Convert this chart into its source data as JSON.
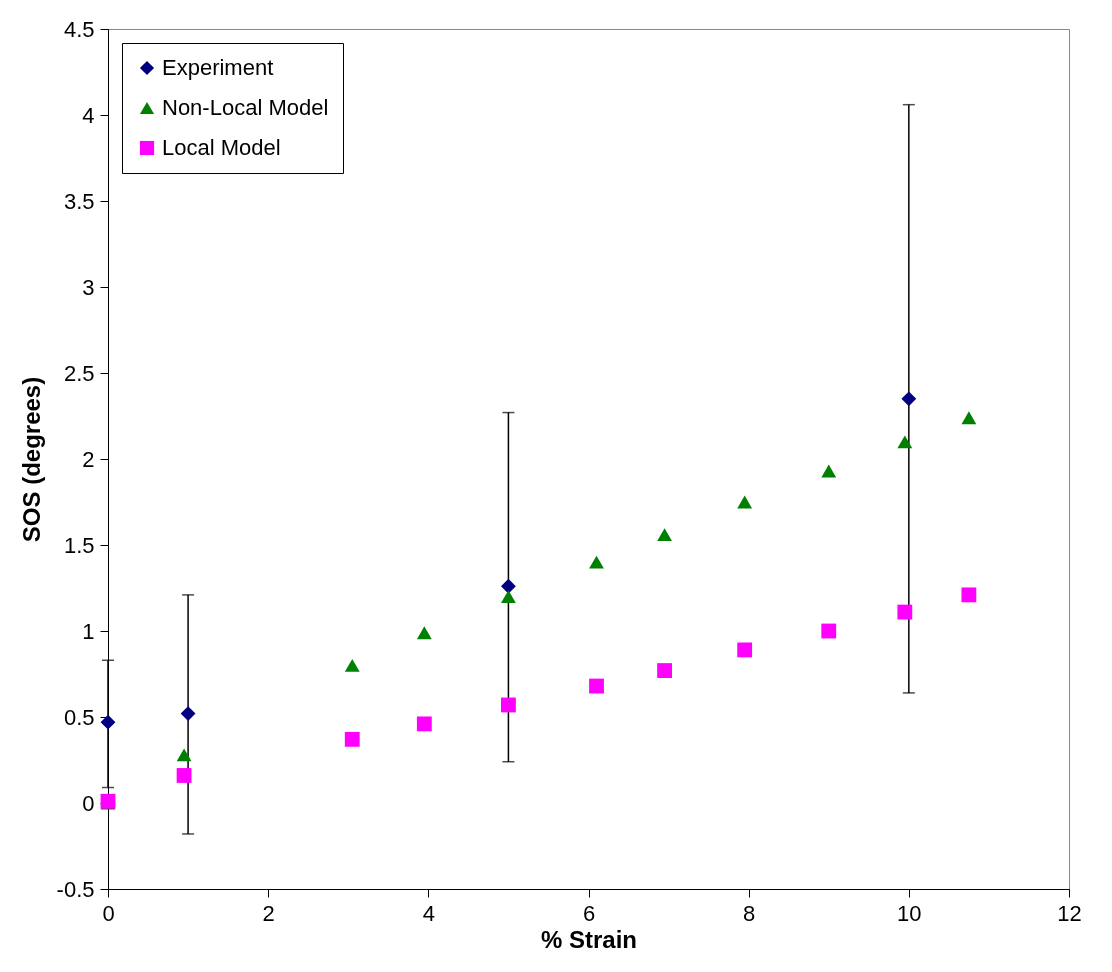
{
  "chart_data": {
    "type": "scatter",
    "xlabel": "% Strain",
    "ylabel": "SOS (degrees)",
    "xlim": [
      0,
      12
    ],
    "ylim": [
      -0.5,
      4.5
    ],
    "xticks": [
      0,
      2,
      4,
      6,
      8,
      10,
      12
    ],
    "yticks": [
      -0.5,
      0,
      0.5,
      1,
      1.5,
      2,
      2.5,
      3,
      3.5,
      4,
      4.5
    ],
    "grid": false,
    "legend": "top left",
    "series": [
      {
        "name": "Experiment",
        "color": "#000080",
        "marker": "diamond",
        "x": [
          0,
          1,
          5,
          10
        ],
        "values": [
          0.47,
          0.52,
          1.26,
          2.35
        ],
        "errors": [
          [
            0.09,
            0.83
          ],
          [
            -0.18,
            1.21
          ],
          [
            0.24,
            2.27
          ],
          [
            0.64,
            4.06
          ]
        ]
      },
      {
        "name": "Non-Local Model",
        "color": "#008000",
        "marker": "triangle",
        "x": [
          0,
          0.95,
          3.05,
          3.95,
          5.0,
          6.1,
          6.95,
          7.95,
          9.0,
          9.95,
          10.75
        ],
        "values": [
          0,
          0.28,
          0.8,
          0.99,
          1.2,
          1.4,
          1.56,
          1.75,
          1.93,
          2.1,
          2.24
        ]
      },
      {
        "name": "Local Model",
        "color": "#ff00ff",
        "marker": "square",
        "x": [
          0,
          0.95,
          3.05,
          3.95,
          5.0,
          6.1,
          6.95,
          7.95,
          9.0,
          9.95,
          10.75
        ],
        "values": [
          0.01,
          0.16,
          0.37,
          0.46,
          0.57,
          0.68,
          0.77,
          0.89,
          1.0,
          1.11,
          1.21
        ]
      }
    ]
  }
}
